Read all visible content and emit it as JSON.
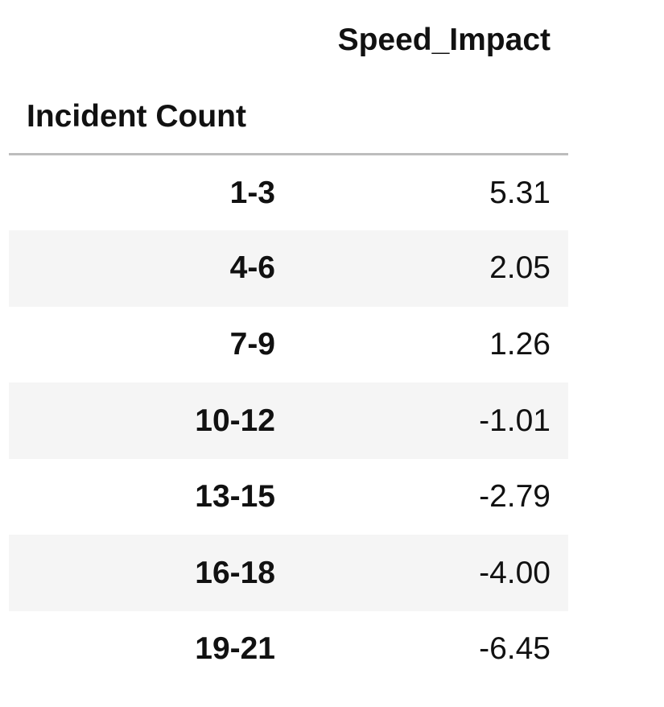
{
  "table": {
    "value_column_header": "Speed_Impact",
    "index_name": "Incident Count",
    "rows": [
      {
        "index": "1-3",
        "value": "5.31"
      },
      {
        "index": "4-6",
        "value": "2.05"
      },
      {
        "index": "7-9",
        "value": "1.26"
      },
      {
        "index": "10-12",
        "value": "-1.01"
      },
      {
        "index": "13-15",
        "value": "-2.79"
      },
      {
        "index": "16-18",
        "value": "-4.00"
      },
      {
        "index": "19-21",
        "value": "-6.45"
      }
    ]
  }
}
